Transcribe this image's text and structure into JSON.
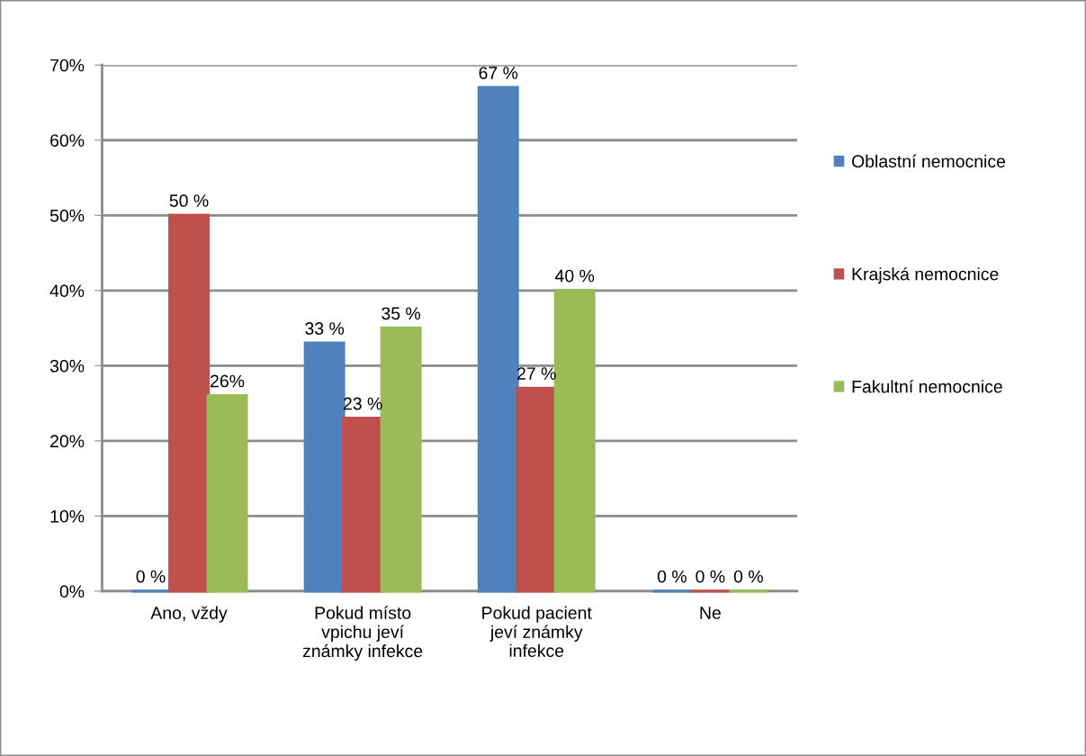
{
  "chart_data": {
    "type": "bar",
    "categories": [
      "Ano, vždy",
      "Pokud místo\nvpichu jeví\nznámky infekce",
      "Pokud pacient\njeví známky\ninfekce",
      "Ne"
    ],
    "series": [
      {
        "name": "Oblastní nemocnice",
        "color": "#4f81bd",
        "values": [
          0,
          33,
          67,
          0
        ],
        "value_labels": [
          "0 %",
          "33 %",
          "67 %",
          "0 %"
        ]
      },
      {
        "name": "Krajská nemocnice",
        "color": "#c0504d",
        "values": [
          50,
          23,
          27,
          0
        ],
        "value_labels": [
          "50 %",
          "23 %",
          "27 %",
          "0 %"
        ]
      },
      {
        "name": "Fakultní nemocnice",
        "color": "#9bbb59",
        "values": [
          26,
          35,
          40,
          0
        ],
        "value_labels": [
          "26%",
          "35 %",
          "40 %",
          "0 %"
        ]
      }
    ],
    "ylim": [
      0,
      70
    ],
    "yticks": [
      {
        "value": 0,
        "label": "0%"
      },
      {
        "value": 10,
        "label": "10%"
      },
      {
        "value": 20,
        "label": "20%"
      },
      {
        "value": 30,
        "label": "30%"
      },
      {
        "value": 40,
        "label": "40%"
      },
      {
        "value": 50,
        "label": "50%"
      },
      {
        "value": 60,
        "label": "60%"
      },
      {
        "value": 70,
        "label": "70%"
      }
    ],
    "grid": "y",
    "legend": "right"
  }
}
